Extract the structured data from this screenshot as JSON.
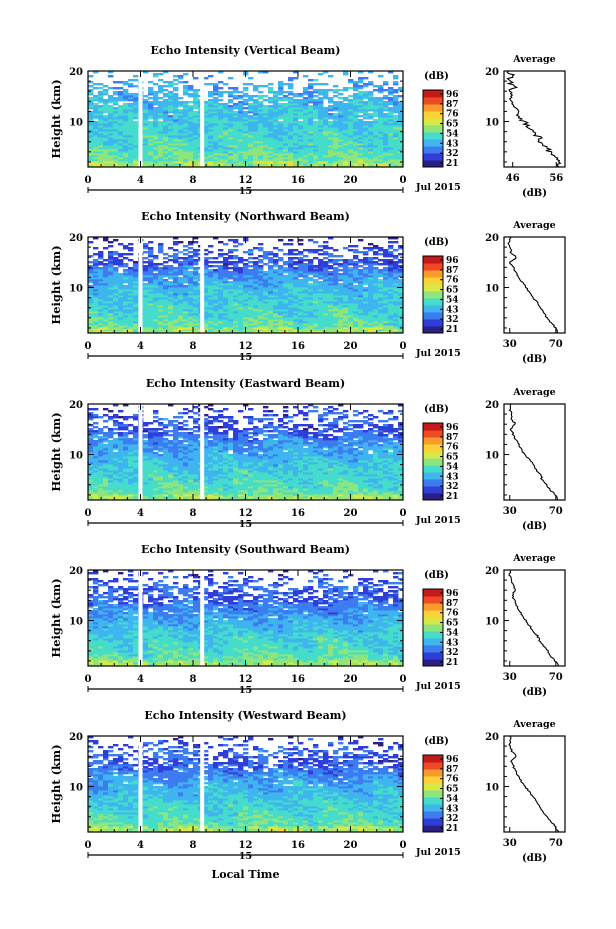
{
  "figure": {
    "xlabel": "Local Time",
    "date_label": "Jul 2015",
    "day_label": "15",
    "colorbar_unit": "(dB)",
    "colorbar_ticks": [
      "96",
      "87",
      "76",
      "65",
      "54",
      "43",
      "32",
      "21"
    ],
    "avg_title": "Average",
    "avg_xlabel": "(dB)",
    "ylabel": "Height (km)"
  },
  "colors": {
    "scale": [
      "#2b1f86",
      "#2e3ed6",
      "#3c7cf0",
      "#3fb5ef",
      "#46dccb",
      "#8ee57c",
      "#d8e947",
      "#fbd337",
      "#f99b2c",
      "#ee4a24",
      "#c51a1a"
    ],
    "gap": "#ffffff"
  },
  "chart_data": [
    {
      "type": "heatmap",
      "title": "Echo Intensity (Vertical Beam)",
      "x_ticks": [
        "0",
        "4",
        "8",
        "12",
        "16",
        "20",
        "0"
      ],
      "xlim": [
        0,
        24
      ],
      "y_ticks": [
        "20",
        "10"
      ],
      "ylim": [
        1,
        20
      ],
      "gaps_hours": [
        4,
        8.7
      ],
      "profile": [
        {
          "h": 1.5,
          "v": 56
        },
        {
          "h": 3,
          "v": 55
        },
        {
          "h": 5,
          "v": 52
        },
        {
          "h": 7,
          "v": 51
        },
        {
          "h": 9,
          "v": 49
        },
        {
          "h": 12,
          "v": 47
        },
        {
          "h": 15,
          "v": 45
        },
        {
          "h": 18,
          "v": 44
        },
        {
          "h": 20,
          "v": 43
        }
      ],
      "avg": {
        "x_ticks": [
          "46",
          "56"
        ],
        "xlim": [
          44,
          58
        ],
        "ylim": [
          1,
          20
        ],
        "y_ticks": [
          "20",
          "10"
        ],
        "profile": [
          {
            "h": 1,
            "v": 57
          },
          {
            "h": 2,
            "v": 56.5
          },
          {
            "h": 3,
            "v": 55.5
          },
          {
            "h": 4,
            "v": 54.2
          },
          {
            "h": 5,
            "v": 53.8
          },
          {
            "h": 6,
            "v": 52.5
          },
          {
            "h": 7,
            "v": 52
          },
          {
            "h": 8,
            "v": 50.5
          },
          {
            "h": 9,
            "v": 49.8
          },
          {
            "h": 10,
            "v": 48.5
          },
          {
            "h": 11,
            "v": 47.5
          },
          {
            "h": 12,
            "v": 47
          },
          {
            "h": 13,
            "v": 46.5
          },
          {
            "h": 14,
            "v": 46
          },
          {
            "h": 15,
            "v": 45.6
          },
          {
            "h": 16,
            "v": 45.2
          },
          {
            "h": 17,
            "v": 46.5
          },
          {
            "h": 18,
            "v": 45
          },
          {
            "h": 19,
            "v": 46
          },
          {
            "h": 20,
            "v": 45
          }
        ]
      }
    },
    {
      "type": "heatmap",
      "title": "Echo Intensity (Northward Beam)",
      "x_ticks": [
        "0",
        "4",
        "8",
        "12",
        "16",
        "20",
        "0"
      ],
      "xlim": [
        0,
        24
      ],
      "y_ticks": [
        "20",
        "10"
      ],
      "ylim": [
        1,
        20
      ],
      "gaps_hours": [
        4,
        8.7
      ],
      "profile": [
        {
          "h": 1.5,
          "v": 56
        },
        {
          "h": 3,
          "v": 54
        },
        {
          "h": 5,
          "v": 51
        },
        {
          "h": 7,
          "v": 49
        },
        {
          "h": 9,
          "v": 47
        },
        {
          "h": 11,
          "v": 44
        },
        {
          "h": 13,
          "v": 40
        },
        {
          "h": 15,
          "v": 33
        },
        {
          "h": 17,
          "v": 36
        },
        {
          "h": 19,
          "v": 30
        },
        {
          "h": 20,
          "v": 24
        }
      ],
      "avg": {
        "x_ticks": [
          "30",
          "70"
        ],
        "xlim": [
          25,
          78
        ],
        "ylim": [
          1,
          20
        ],
        "y_ticks": [
          "20",
          "10"
        ],
        "profile": [
          {
            "h": 1,
            "v": 72
          },
          {
            "h": 2,
            "v": 70
          },
          {
            "h": 3,
            "v": 66
          },
          {
            "h": 4,
            "v": 62
          },
          {
            "h": 5,
            "v": 60
          },
          {
            "h": 6,
            "v": 56
          },
          {
            "h": 7,
            "v": 54
          },
          {
            "h": 8,
            "v": 50
          },
          {
            "h": 9,
            "v": 47
          },
          {
            "h": 10,
            "v": 44
          },
          {
            "h": 11,
            "v": 41
          },
          {
            "h": 12,
            "v": 38
          },
          {
            "h": 13,
            "v": 35
          },
          {
            "h": 14,
            "v": 33
          },
          {
            "h": 15,
            "v": 30
          },
          {
            "h": 16,
            "v": 36
          },
          {
            "h": 17,
            "v": 31
          },
          {
            "h": 18,
            "v": 30
          },
          {
            "h": 19,
            "v": 29
          },
          {
            "h": 20,
            "v": 31
          }
        ]
      }
    },
    {
      "type": "heatmap",
      "title": "Echo Intensity (Eastward Beam)",
      "x_ticks": [
        "0",
        "4",
        "8",
        "12",
        "16",
        "20",
        "0"
      ],
      "xlim": [
        0,
        24
      ],
      "y_ticks": [
        "20",
        "10"
      ],
      "ylim": [
        1,
        20
      ],
      "gaps_hours": [
        4,
        8.7
      ],
      "profile": [
        {
          "h": 1.5,
          "v": 56
        },
        {
          "h": 3,
          "v": 54
        },
        {
          "h": 5,
          "v": 51
        },
        {
          "h": 7,
          "v": 49
        },
        {
          "h": 9,
          "v": 46
        },
        {
          "h": 11,
          "v": 43
        },
        {
          "h": 13,
          "v": 39
        },
        {
          "h": 15,
          "v": 33
        },
        {
          "h": 17,
          "v": 35
        },
        {
          "h": 19,
          "v": 32
        },
        {
          "h": 20,
          "v": 28
        }
      ],
      "avg": {
        "x_ticks": [
          "30",
          "70"
        ],
        "xlim": [
          25,
          78
        ],
        "ylim": [
          1,
          20
        ],
        "y_ticks": [
          "20",
          "10"
        ],
        "profile": [
          {
            "h": 1,
            "v": 72
          },
          {
            "h": 2,
            "v": 70
          },
          {
            "h": 3,
            "v": 65
          },
          {
            "h": 4,
            "v": 62
          },
          {
            "h": 5,
            "v": 58
          },
          {
            "h": 6,
            "v": 57
          },
          {
            "h": 7,
            "v": 53
          },
          {
            "h": 8,
            "v": 51
          },
          {
            "h": 9,
            "v": 47
          },
          {
            "h": 10,
            "v": 43
          },
          {
            "h": 11,
            "v": 40
          },
          {
            "h": 12,
            "v": 38
          },
          {
            "h": 13,
            "v": 35
          },
          {
            "h": 14,
            "v": 33
          },
          {
            "h": 15,
            "v": 31
          },
          {
            "h": 16,
            "v": 35
          },
          {
            "h": 17,
            "v": 31
          },
          {
            "h": 18,
            "v": 32
          },
          {
            "h": 19,
            "v": 30
          },
          {
            "h": 20,
            "v": 31
          }
        ]
      }
    },
    {
      "type": "heatmap",
      "title": "Echo Intensity (Southward Beam)",
      "x_ticks": [
        "0",
        "4",
        "8",
        "12",
        "16",
        "20",
        "0"
      ],
      "xlim": [
        0,
        24
      ],
      "y_ticks": [
        "20",
        "10"
      ],
      "ylim": [
        1,
        20
      ],
      "gaps_hours": [
        4,
        8.7
      ],
      "profile": [
        {
          "h": 1.5,
          "v": 56
        },
        {
          "h": 3,
          "v": 54
        },
        {
          "h": 5,
          "v": 51
        },
        {
          "h": 7,
          "v": 49
        },
        {
          "h": 9,
          "v": 46
        },
        {
          "h": 11,
          "v": 42
        },
        {
          "h": 13,
          "v": 38
        },
        {
          "h": 15,
          "v": 34
        },
        {
          "h": 17,
          "v": 36
        },
        {
          "h": 19,
          "v": 32
        },
        {
          "h": 20,
          "v": 30
        }
      ],
      "avg": {
        "x_ticks": [
          "30",
          "70"
        ],
        "xlim": [
          25,
          78
        ],
        "ylim": [
          1,
          20
        ],
        "y_ticks": [
          "20",
          "10"
        ],
        "profile": [
          {
            "h": 1,
            "v": 73
          },
          {
            "h": 2,
            "v": 69
          },
          {
            "h": 3,
            "v": 66
          },
          {
            "h": 4,
            "v": 63
          },
          {
            "h": 5,
            "v": 59
          },
          {
            "h": 6,
            "v": 56
          },
          {
            "h": 7,
            "v": 54
          },
          {
            "h": 8,
            "v": 50
          },
          {
            "h": 9,
            "v": 47
          },
          {
            "h": 10,
            "v": 44
          },
          {
            "h": 11,
            "v": 41
          },
          {
            "h": 12,
            "v": 38
          },
          {
            "h": 13,
            "v": 36
          },
          {
            "h": 14,
            "v": 34
          },
          {
            "h": 15,
            "v": 32
          },
          {
            "h": 16,
            "v": 35
          },
          {
            "h": 17,
            "v": 33
          },
          {
            "h": 18,
            "v": 31
          },
          {
            "h": 19,
            "v": 30
          },
          {
            "h": 20,
            "v": 31
          }
        ]
      }
    },
    {
      "type": "heatmap",
      "title": "Echo Intensity (Westward Beam)",
      "x_ticks": [
        "0",
        "4",
        "8",
        "12",
        "16",
        "20",
        "0"
      ],
      "xlim": [
        0,
        24
      ],
      "y_ticks": [
        "20",
        "10"
      ],
      "ylim": [
        1,
        20
      ],
      "gaps_hours": [
        4,
        8.7
      ],
      "profile": [
        {
          "h": 1.5,
          "v": 56
        },
        {
          "h": 3,
          "v": 54
        },
        {
          "h": 5,
          "v": 51
        },
        {
          "h": 7,
          "v": 49
        },
        {
          "h": 9,
          "v": 46
        },
        {
          "h": 11,
          "v": 43
        },
        {
          "h": 13,
          "v": 38
        },
        {
          "h": 15,
          "v": 33
        },
        {
          "h": 17,
          "v": 36
        },
        {
          "h": 19,
          "v": 31
        },
        {
          "h": 20,
          "v": 28
        }
      ],
      "avg": {
        "x_ticks": [
          "30",
          "70"
        ],
        "xlim": [
          25,
          78
        ],
        "ylim": [
          1,
          20
        ],
        "y_ticks": [
          "20",
          "10"
        ],
        "profile": [
          {
            "h": 1,
            "v": 72
          },
          {
            "h": 2,
            "v": 70
          },
          {
            "h": 3,
            "v": 66
          },
          {
            "h": 4,
            "v": 62
          },
          {
            "h": 5,
            "v": 59
          },
          {
            "h": 6,
            "v": 56
          },
          {
            "h": 7,
            "v": 54
          },
          {
            "h": 8,
            "v": 50
          },
          {
            "h": 9,
            "v": 47
          },
          {
            "h": 10,
            "v": 43
          },
          {
            "h": 11,
            "v": 40
          },
          {
            "h": 12,
            "v": 38
          },
          {
            "h": 13,
            "v": 35
          },
          {
            "h": 14,
            "v": 33
          },
          {
            "h": 15,
            "v": 31
          },
          {
            "h": 16,
            "v": 36
          },
          {
            "h": 17,
            "v": 32
          },
          {
            "h": 18,
            "v": 30
          },
          {
            "h": 19,
            "v": 31
          },
          {
            "h": 20,
            "v": 30
          }
        ]
      }
    }
  ]
}
